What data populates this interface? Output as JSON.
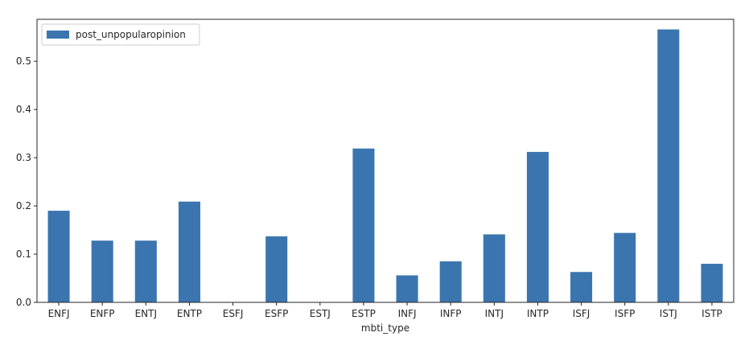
{
  "chart_data": {
    "type": "bar",
    "categories": [
      "ENFJ",
      "ENFP",
      "ENTJ",
      "ENTP",
      "ESFJ",
      "ESFP",
      "ESTJ",
      "ESTP",
      "INFJ",
      "INFP",
      "INTJ",
      "INTP",
      "ISFJ",
      "ISFP",
      "ISTJ",
      "ISTP"
    ],
    "series": [
      {
        "name": "post_unpopularopinion",
        "values": [
          0.19,
          0.128,
          0.128,
          0.209,
          0.0,
          0.137,
          0.0,
          0.319,
          0.056,
          0.085,
          0.141,
          0.312,
          0.063,
          0.144,
          0.566,
          0.08
        ],
        "color": "#3b75af"
      }
    ],
    "xlabel": "mbti_type",
    "ylabel": "",
    "ylim": [
      0,
      0.587
    ],
    "yticks": [
      0.0,
      0.1,
      0.2,
      0.3,
      0.4,
      0.5
    ],
    "ytick_labels": [
      "0.0",
      "0.1",
      "0.2",
      "0.3",
      "0.4",
      "0.5"
    ],
    "grid": false,
    "legend_position": "top-left"
  }
}
